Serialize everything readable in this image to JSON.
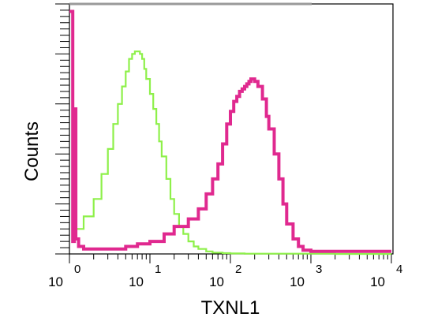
{
  "chart_data": {
    "type": "line",
    "title": "",
    "xlabel": "TXNL1",
    "ylabel": "Counts",
    "x_scale": "log",
    "xlim": [
      1,
      10000
    ],
    "ylim": [
      0,
      100
    ],
    "grid": false,
    "x_ticks": [
      {
        "base": "10",
        "exp": "0"
      },
      {
        "base": "10",
        "exp": "1"
      },
      {
        "base": "10",
        "exp": "2"
      },
      {
        "base": "10",
        "exp": "3"
      },
      {
        "base": "10",
        "exp": "4"
      }
    ],
    "series": [
      {
        "color": "#8ef04a",
        "x": [
          1.1,
          1.5,
          2,
          2.5,
          3,
          3.5,
          4,
          4.5,
          5,
          5.5,
          6,
          6.5,
          7,
          7.5,
          8,
          8.5,
          9,
          10,
          11,
          12,
          13,
          14,
          16,
          18,
          20,
          23,
          26,
          30,
          35,
          40,
          50,
          60,
          80,
          100,
          150,
          200,
          300,
          400,
          600,
          800,
          1000,
          2000,
          10000
        ],
        "y": [
          10,
          15,
          22,
          32,
          42,
          52,
          60,
          67,
          73,
          78,
          80,
          81,
          81,
          80,
          78,
          74,
          70,
          64,
          58,
          52,
          45,
          39,
          30,
          22,
          16,
          11,
          8,
          5,
          3,
          2,
          1,
          0.5,
          0.3,
          0.2,
          0.1,
          0.1,
          0.1,
          0.1,
          0.1,
          0.1,
          0.1,
          0,
          0
        ]
      },
      {
        "color": "#e0298f",
        "x": [
          1,
          1.1,
          1.15,
          1.2,
          1.3,
          1.5,
          2,
          3,
          4,
          5,
          7,
          10,
          15,
          20,
          30,
          40,
          50,
          60,
          70,
          80,
          90,
          100,
          110,
          120,
          130,
          140,
          150,
          160,
          170,
          180,
          190,
          200,
          220,
          250,
          280,
          300,
          350,
          400,
          450,
          500,
          600,
          700,
          800,
          1000,
          1500,
          2000,
          5000,
          10000
        ],
        "y": [
          97,
          5,
          58,
          6,
          3,
          2,
          2,
          2,
          2,
          3,
          4,
          5,
          8,
          11,
          14,
          18,
          24,
          30,
          36,
          44,
          52,
          57,
          61,
          63,
          65,
          66,
          67,
          68,
          69,
          70,
          70,
          69,
          67,
          62,
          55,
          50,
          40,
          30,
          20,
          12,
          6,
          3,
          1.5,
          1,
          1,
          1,
          1,
          1
        ]
      }
    ]
  }
}
